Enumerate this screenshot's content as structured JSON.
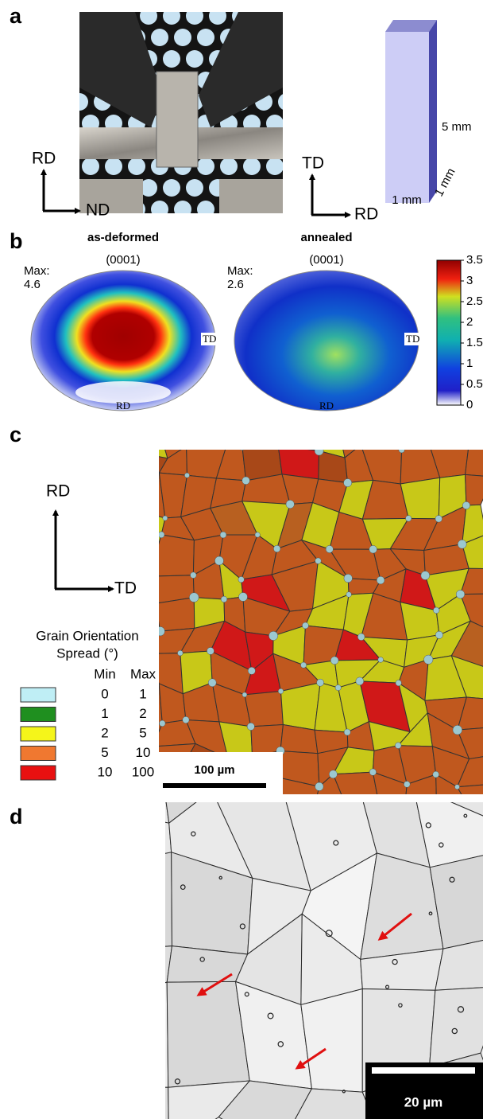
{
  "panel_a": {
    "label": "a",
    "axes_left": {
      "up": "RD",
      "right": "ND"
    },
    "axes_right": {
      "up": "TD",
      "right": "RD"
    },
    "sample_dims": {
      "height": "5 mm",
      "width": "1 mm",
      "depth": "1 mm"
    }
  },
  "panel_b": {
    "label": "b",
    "pole_figures": [
      {
        "title": "as-deformed",
        "plane": "(0001)",
        "max_label": "Max:",
        "max_value": "4.6",
        "td": "TD",
        "rd": "RD"
      },
      {
        "title": "annealed",
        "plane": "(0001)",
        "max_label": "Max:",
        "max_value": "2.6",
        "td": "TD",
        "rd": "RD"
      }
    ],
    "colorbar_ticks": [
      0,
      0.5,
      1,
      1.5,
      2,
      2.5,
      3,
      3.5
    ]
  },
  "panel_c": {
    "label": "c",
    "axes": {
      "up": "RD",
      "right": "TD"
    },
    "legend_title": [
      "Grain Orientation",
      "Spread (°)"
    ],
    "legend_headers": [
      "Min",
      "Max"
    ],
    "legend_rows": [
      {
        "color": "#bfeef5",
        "min": 0,
        "max": 1
      },
      {
        "color": "#1f8f1f",
        "min": 1,
        "max": 2
      },
      {
        "color": "#f5f51a",
        "min": 2,
        "max": 5
      },
      {
        "color": "#f07830",
        "min": 5,
        "max": 10
      },
      {
        "color": "#e81010",
        "min": 10,
        "max": 100
      }
    ],
    "scale_bar": "100 µm"
  },
  "panel_d": {
    "label": "d",
    "scale_bar": "20 µm"
  }
}
